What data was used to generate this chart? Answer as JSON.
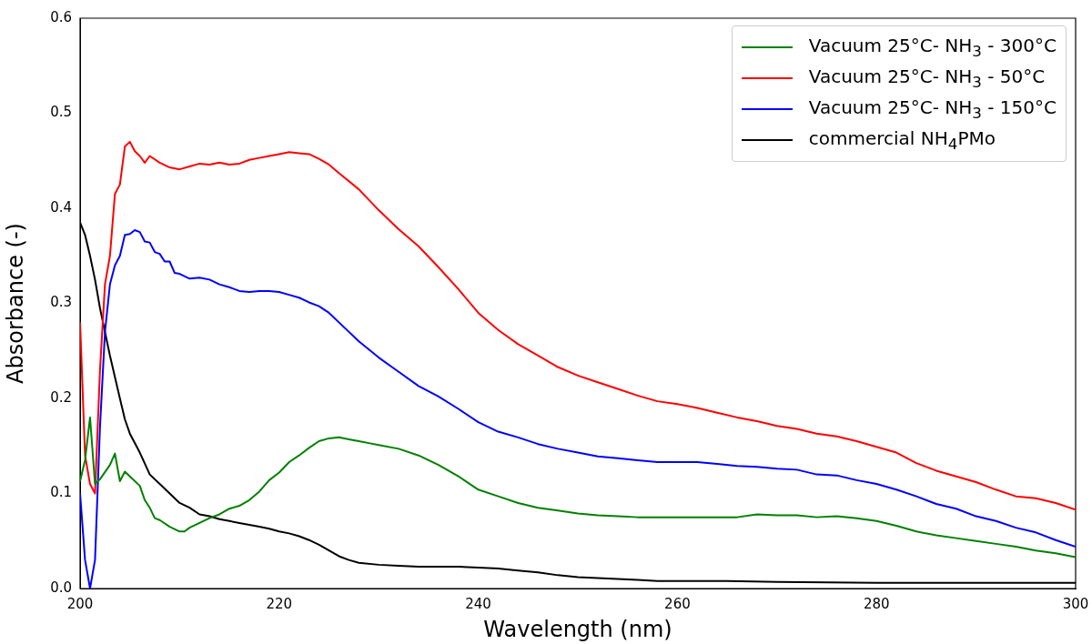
{
  "chart_data": {
    "type": "line",
    "xlabel": "Wavelength (nm)",
    "ylabel": "Absorbance (-)",
    "xlim": [
      200,
      300
    ],
    "xticks": [
      200,
      220,
      240,
      260,
      280,
      300
    ],
    "ylim": [
      0,
      0.6
    ],
    "yticks": [
      {
        "value": 0,
        "label": "0.0"
      },
      {
        "value": 0.1,
        "label": "0.1"
      },
      {
        "value": 0.2,
        "label": "0.2"
      },
      {
        "value": 0.3,
        "label": "0.3"
      },
      {
        "value": 0.4,
        "label": "0.4"
      },
      {
        "value": 0.5,
        "label": "0.5"
      },
      {
        "value": 0.6,
        "label": "0.6"
      }
    ],
    "grid": false,
    "legend": "top right",
    "marker": "none",
    "line_style": "solid",
    "series": [
      {
        "name": "Vacuum 25°C- NH$_{3}$ - 300°C",
        "color": "#008000",
        "x": [
          200,
          200.5,
          201,
          201.5,
          202,
          203,
          203.5,
          204,
          204.5,
          205,
          206,
          206.5,
          207,
          207.5,
          208,
          209,
          210,
          210.5,
          211,
          212,
          213,
          214,
          215,
          216,
          217,
          218,
          219,
          220,
          221,
          222,
          223,
          224,
          225,
          226,
          227,
          228,
          229,
          230,
          232,
          234,
          236,
          238,
          240,
          242,
          244,
          246,
          248,
          250,
          252,
          254,
          256,
          258,
          260,
          262,
          264,
          266,
          268,
          270,
          272,
          274,
          276,
          278,
          280,
          282,
          284,
          286,
          288,
          290,
          292,
          294,
          296,
          298,
          300
        ],
        "values": [
          0.113,
          0.135,
          0.18,
          0.11,
          0.115,
          0.13,
          0.142,
          0.113,
          0.123,
          0.118,
          0.108,
          0.093,
          0.085,
          0.074,
          0.072,
          0.065,
          0.06,
          0.06,
          0.064,
          0.069,
          0.074,
          0.078,
          0.084,
          0.087,
          0.093,
          0.102,
          0.114,
          0.122,
          0.133,
          0.14,
          0.148,
          0.155,
          0.158,
          0.159,
          0.157,
          0.155,
          0.153,
          0.151,
          0.147,
          0.14,
          0.13,
          0.118,
          0.104,
          0.097,
          0.09,
          0.085,
          0.082,
          0.079,
          0.077,
          0.076,
          0.075,
          0.075,
          0.075,
          0.075,
          0.075,
          0.075,
          0.078,
          0.077,
          0.077,
          0.075,
          0.076,
          0.074,
          0.071,
          0.066,
          0.06,
          0.056,
          0.053,
          0.05,
          0.047,
          0.044,
          0.04,
          0.037,
          0.033
        ]
      },
      {
        "name": "Vacuum 25°C- NH$_{3}$ - 50°C",
        "color": "#ff0000",
        "x": [
          200,
          200.5,
          201,
          201.5,
          202,
          202.5,
          203,
          203.5,
          204,
          204.5,
          205,
          205.5,
          206,
          206.5,
          207,
          208,
          209,
          210,
          211,
          212,
          213,
          214,
          215,
          216,
          217,
          218,
          219,
          220,
          221,
          222,
          223,
          224,
          225,
          226,
          228,
          230,
          232,
          234,
          236,
          238,
          240,
          242,
          244,
          246,
          248,
          250,
          252,
          254,
          256,
          258,
          260,
          262,
          264,
          266,
          268,
          270,
          272,
          274,
          276,
          278,
          280,
          282,
          284,
          286,
          288,
          290,
          292,
          294,
          296,
          298,
          300
        ],
        "values": [
          0.28,
          0.14,
          0.11,
          0.1,
          0.23,
          0.32,
          0.35,
          0.415,
          0.425,
          0.465,
          0.47,
          0.46,
          0.455,
          0.448,
          0.455,
          0.448,
          0.443,
          0.441,
          0.444,
          0.447,
          0.446,
          0.448,
          0.446,
          0.447,
          0.451,
          0.453,
          0.455,
          0.457,
          0.459,
          0.458,
          0.457,
          0.452,
          0.446,
          0.437,
          0.42,
          0.398,
          0.378,
          0.36,
          0.338,
          0.315,
          0.29,
          0.272,
          0.257,
          0.245,
          0.233,
          0.224,
          0.217,
          0.21,
          0.203,
          0.197,
          0.194,
          0.19,
          0.185,
          0.18,
          0.176,
          0.171,
          0.168,
          0.163,
          0.16,
          0.155,
          0.149,
          0.143,
          0.132,
          0.124,
          0.118,
          0.112,
          0.104,
          0.097,
          0.095,
          0.09,
          0.083
        ]
      },
      {
        "name": "Vacuum 25°C- NH$_{3}$ - 150°C",
        "color": "#0000ff",
        "x": [
          200,
          200.5,
          201,
          201.5,
          202,
          202.5,
          203,
          203.5,
          204,
          204.5,
          205,
          205.5,
          206,
          206.5,
          207,
          207.5,
          208,
          208.5,
          209,
          209.5,
          210,
          211,
          212,
          213,
          214,
          215,
          216,
          217,
          218,
          219,
          220,
          221,
          222,
          223,
          224,
          225,
          226,
          228,
          230,
          232,
          234,
          236,
          238,
          240,
          242,
          244,
          246,
          248,
          250,
          252,
          254,
          256,
          258,
          260,
          262,
          264,
          266,
          268,
          270,
          272,
          274,
          276,
          278,
          280,
          282,
          284,
          286,
          288,
          290,
          292,
          294,
          296,
          298,
          300
        ],
        "values": [
          0.1,
          0.03,
          0,
          0.03,
          0.17,
          0.27,
          0.32,
          0.34,
          0.35,
          0.372,
          0.373,
          0.377,
          0.375,
          0.365,
          0.364,
          0.354,
          0.352,
          0.344,
          0.344,
          0.332,
          0.331,
          0.326,
          0.327,
          0.325,
          0.32,
          0.317,
          0.313,
          0.312,
          0.313,
          0.313,
          0.312,
          0.309,
          0.306,
          0.301,
          0.297,
          0.29,
          0.28,
          0.26,
          0.243,
          0.228,
          0.213,
          0.202,
          0.189,
          0.175,
          0.165,
          0.159,
          0.152,
          0.147,
          0.143,
          0.139,
          0.137,
          0.135,
          0.133,
          0.133,
          0.133,
          0.131,
          0.129,
          0.128,
          0.126,
          0.125,
          0.12,
          0.119,
          0.114,
          0.11,
          0.104,
          0.097,
          0.089,
          0.084,
          0.076,
          0.071,
          0.064,
          0.059,
          0.051,
          0.044
        ]
      },
      {
        "name": "commercial NH$_{4}$PMo",
        "color": "#000000",
        "x": [
          200,
          200.5,
          201,
          201.5,
          202,
          203,
          204,
          204.5,
          205,
          206,
          207,
          208,
          209,
          210,
          211,
          212,
          213,
          214,
          215,
          216,
          217,
          218,
          219,
          220,
          221,
          222,
          223,
          224,
          225,
          226,
          227,
          228,
          230,
          232,
          234,
          236,
          238,
          240,
          242,
          244,
          246,
          248,
          250,
          252,
          254,
          256,
          258,
          260,
          265,
          270,
          280,
          290,
          300
        ],
        "values": [
          0.385,
          0.372,
          0.35,
          0.325,
          0.295,
          0.245,
          0.2,
          0.178,
          0.163,
          0.143,
          0.12,
          0.11,
          0.1,
          0.09,
          0.085,
          0.078,
          0.076,
          0.073,
          0.071,
          0.069,
          0.067,
          0.065,
          0.063,
          0.06,
          0.058,
          0.055,
          0.051,
          0.046,
          0.04,
          0.034,
          0.03,
          0.027,
          0.025,
          0.024,
          0.023,
          0.023,
          0.023,
          0.022,
          0.021,
          0.019,
          0.017,
          0.014,
          0.012,
          0.011,
          0.01,
          0.009,
          0.008,
          0.008,
          0.008,
          0.007,
          0.006,
          0.006,
          0.006
        ]
      }
    ]
  }
}
